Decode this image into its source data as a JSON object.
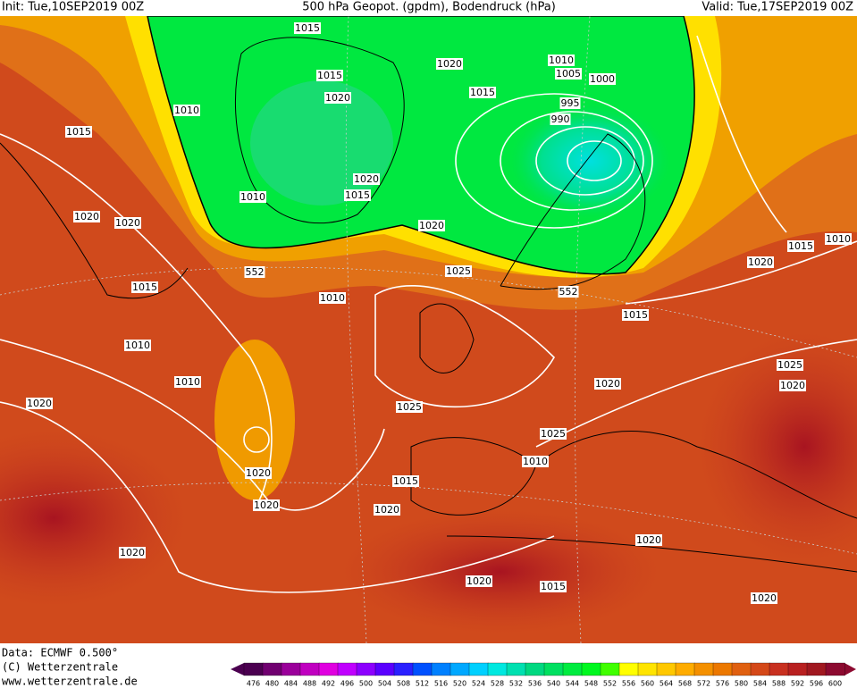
{
  "header": {
    "init": "Init: Tue,10SEP2019 00Z",
    "title": "500 hPa Geopot. (gpdm), Bodendruck (hPa)",
    "valid": "Valid: Tue,17SEP2019 00Z"
  },
  "footer": {
    "data": "Data: ECMWF  0.500°",
    "copyright": "(C) Wetterzentrale",
    "website": "www.wetterzentrale.de"
  },
  "isobar_labels": [
    "1015",
    "1020",
    "1010",
    "1005",
    "1000",
    "995",
    "990",
    "1015",
    "1015",
    "1020",
    "1010",
    "1015",
    "1020",
    "1015",
    "1010",
    "1020",
    "1020",
    "1020",
    "1015",
    "1020",
    "1015",
    "1010",
    "552",
    "1025",
    "1010",
    "552",
    "1015",
    "1010",
    "1010",
    "1025",
    "1020",
    "1020",
    "1025",
    "1025",
    "1020",
    "1010",
    "1020",
    "1015",
    "1020",
    "1020",
    "1020",
    "1020",
    "1020",
    "1015",
    "1020"
  ],
  "contour_legend": {
    "values": [
      476,
      480,
      484,
      488,
      492,
      496,
      500,
      504,
      508,
      512,
      516,
      520,
      524,
      528,
      532,
      536,
      540,
      544,
      548,
      552,
      556,
      560,
      564,
      568,
      572,
      576,
      580,
      584,
      588,
      592,
      596,
      600
    ],
    "colors": [
      "#4b0050",
      "#700070",
      "#9a009a",
      "#c000c0",
      "#e000e0",
      "#c000ff",
      "#8c00ff",
      "#5a00ff",
      "#2a20ff",
      "#0050ff",
      "#0080ff",
      "#00a8ff",
      "#00d0ff",
      "#00e8e0",
      "#00e0b0",
      "#00d880",
      "#00e060",
      "#00ec40",
      "#00f820",
      "#40ff00",
      "#ffff00",
      "#ffe400",
      "#ffc800",
      "#ffac00",
      "#f49000",
      "#ec7800",
      "#e06010",
      "#d44818",
      "#c83020",
      "#b82020",
      "#a01820",
      "#8c0a30"
    ]
  }
}
